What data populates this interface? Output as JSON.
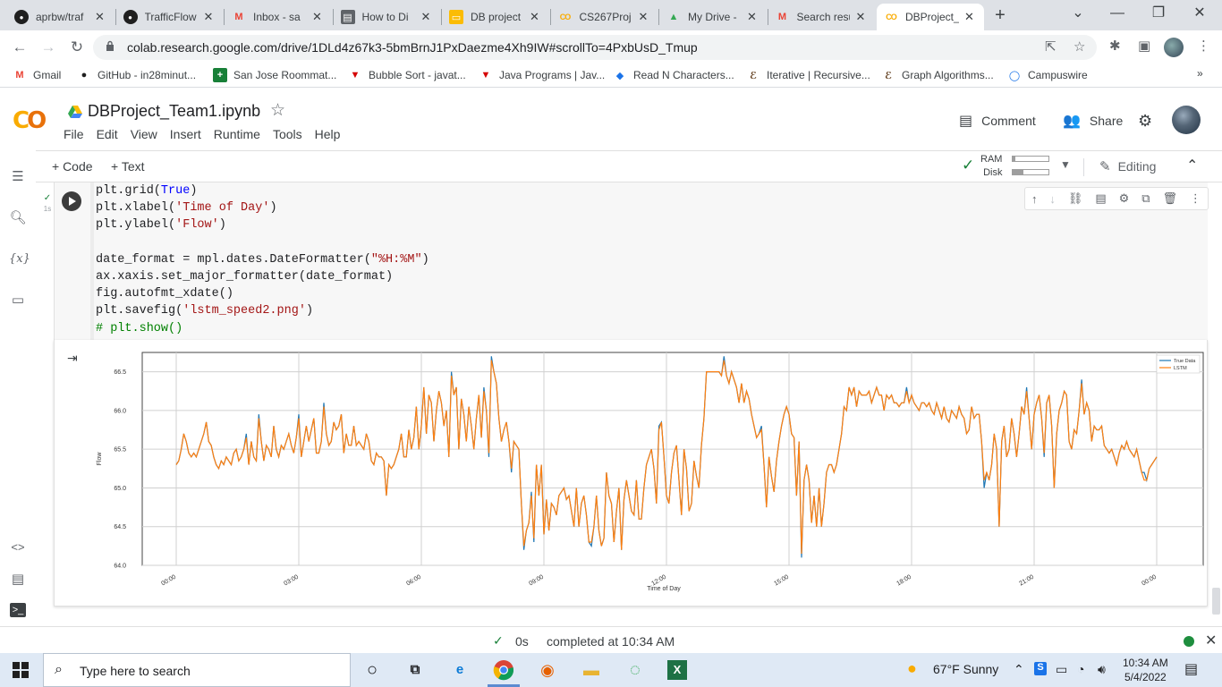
{
  "browser": {
    "tabs": [
      {
        "label": "aprbw/traf",
        "icon": "github-icon"
      },
      {
        "label": "TrafficFlow",
        "icon": "github-icon"
      },
      {
        "label": "Inbox - sa",
        "icon": "gmail-icon"
      },
      {
        "label": "How to Di",
        "icon": "page-icon"
      },
      {
        "label": "DB project",
        "icon": "slides-icon"
      },
      {
        "label": "CS267Proj",
        "icon": "colab-icon"
      },
      {
        "label": "My Drive -",
        "icon": "drive-icon"
      },
      {
        "label": "Search resu",
        "icon": "gmail-icon"
      },
      {
        "label": "DBProject_",
        "icon": "colab-icon"
      }
    ],
    "url": "colab.research.google.com/drive/1DLd4z67k3-5bmBrnJ1PxDaezme4Xh9IW#scrollTo=4PxbUsD_Tmup",
    "bookmarks": [
      {
        "label": "Gmail",
        "icon": "gmail-icon"
      },
      {
        "label": "GitHub - in28minut...",
        "icon": "github-icon"
      },
      {
        "label": "San Jose Roommat...",
        "icon": "plus-icon"
      },
      {
        "label": "Bubble Sort - javat...",
        "icon": "javatpoint-icon"
      },
      {
        "label": "Java Programs | Jav...",
        "icon": "javatpoint-icon"
      },
      {
        "label": "Read N Characters...",
        "icon": "stack-icon"
      },
      {
        "label": "Iterative | Recursive...",
        "icon": "code-icon"
      },
      {
        "label": "Graph Algorithms...",
        "icon": "code-icon"
      },
      {
        "label": "Campuswire",
        "icon": "campuswire-icon"
      }
    ]
  },
  "colab": {
    "logo": "CO",
    "notebook_title": "DBProject_Team1.ipynb",
    "menu": [
      "File",
      "Edit",
      "View",
      "Insert",
      "Runtime",
      "Tools",
      "Help"
    ],
    "comment_label": "Comment",
    "share_label": "Share",
    "add_code_label": "+ Code",
    "add_text_label": "+ Text",
    "ram_label": "RAM",
    "disk_label": "Disk",
    "ram_usage": 0.08,
    "disk_usage": 0.3,
    "editing_label": "Editing"
  },
  "cell": {
    "exec_time": "1s",
    "code_lines": [
      [
        {
          "t": "plt.grid("
        },
        {
          "t": "True",
          "c": "kw"
        },
        {
          "t": ")"
        }
      ],
      [
        {
          "t": "plt.xlabel("
        },
        {
          "t": "'Time of Day'",
          "c": "str"
        },
        {
          "t": ")"
        }
      ],
      [
        {
          "t": "plt.ylabel("
        },
        {
          "t": "'Flow'",
          "c": "str"
        },
        {
          "t": ")"
        }
      ],
      [
        {
          "t": ""
        }
      ],
      [
        {
          "t": "date_format = mpl.dates.DateFormatter("
        },
        {
          "t": "\"%H:%M\"",
          "c": "str"
        },
        {
          "t": ")"
        }
      ],
      [
        {
          "t": "ax.xaxis.set_major_formatter(date_format)"
        }
      ],
      [
        {
          "t": "fig.autofmt_xdate()"
        }
      ],
      [
        {
          "t": "plt.savefig("
        },
        {
          "t": "'lstm_speed2.png'",
          "c": "str"
        },
        {
          "t": ")"
        }
      ],
      [
        {
          "t": "# plt.show()",
          "c": "cm"
        }
      ]
    ]
  },
  "status": {
    "elapsed": "0s",
    "message": "completed at 10:34 AM"
  },
  "taskbar": {
    "search_placeholder": "Type here to search",
    "weather": "67°F  Sunny",
    "time": "10:34 AM",
    "date": "5/4/2022"
  },
  "chart_data": {
    "type": "line",
    "title": "",
    "xlabel": "Time of Day",
    "ylabel": "Flow",
    "ylim": [
      64.0,
      66.75
    ],
    "yticks": [
      "64.0",
      "64.5",
      "65.0",
      "65.5",
      "66.0",
      "66.5"
    ],
    "xticks": [
      "00:00",
      "03:00",
      "06:00",
      "09:00",
      "12:00",
      "15:00",
      "18:00",
      "21:00",
      "00:00"
    ],
    "x_range_hours": [
      0,
      24
    ],
    "grid": true,
    "legend_position": "top-right",
    "colors": {
      "true_data": "#1f77b4",
      "lstm": "#ff7f0e"
    },
    "series": [
      {
        "name": "True Data",
        "values": [
          65.3,
          65.35,
          65.5,
          65.7,
          65.6,
          65.45,
          65.4,
          65.45,
          65.4,
          65.5,
          65.6,
          65.7,
          65.85,
          65.6,
          65.55,
          65.4,
          65.3,
          65.25,
          65.35,
          65.3,
          65.4,
          65.35,
          65.3,
          65.45,
          65.5,
          65.35,
          65.4,
          65.5,
          65.7,
          65.3,
          65.6,
          65.4,
          65.35,
          65.95,
          65.6,
          65.35,
          65.55,
          65.5,
          65.4,
          65.8,
          65.5,
          65.4,
          65.55,
          65.5,
          65.6,
          65.7,
          65.55,
          65.45,
          65.65,
          65.95,
          65.4,
          65.6,
          65.8,
          65.6,
          65.75,
          65.9,
          65.45,
          65.45,
          65.6,
          66.1,
          65.7,
          65.55,
          65.6,
          65.85,
          65.75,
          65.8,
          65.95,
          65.45,
          65.7,
          65.55,
          65.55,
          65.8,
          65.55,
          65.6,
          65.55,
          65.5,
          65.7,
          65.6,
          65.35,
          65.3,
          65.45,
          65.4,
          65.4,
          65.35,
          64.9,
          65.3,
          65.25,
          65.3,
          65.4,
          65.5,
          65.7,
          65.4,
          65.4,
          65.75,
          65.5,
          65.65,
          66.05,
          65.5,
          65.8,
          66.3,
          65.7,
          66.2,
          66.1,
          65.6,
          66.0,
          66.25,
          66.1,
          65.8,
          66.0,
          65.4,
          66.5,
          66.2,
          66.3,
          65.5,
          66.15,
          65.95,
          65.6,
          66.05,
          65.8,
          65.5,
          65.9,
          66.2,
          65.65,
          66.3,
          66.0,
          65.4,
          66.7,
          66.5,
          66.35,
          65.9,
          65.6,
          65.75,
          65.85,
          65.6,
          65.2,
          65.6,
          65.55,
          65.5,
          64.8,
          64.2,
          64.45,
          64.55,
          64.95,
          64.3,
          65.3,
          64.9,
          65.3,
          64.4,
          64.85,
          64.45,
          64.8,
          64.75,
          64.65,
          64.9,
          64.95,
          65.0,
          64.85,
          64.9,
          64.7,
          64.5,
          65.0,
          64.5,
          64.8,
          64.9,
          64.65,
          64.3,
          64.25,
          64.5,
          64.9,
          64.45,
          64.25,
          64.35,
          65.2,
          64.9,
          64.8,
          64.3,
          64.7,
          65.0,
          64.2,
          64.85,
          65.1,
          64.9,
          64.7,
          64.65,
          65.1,
          64.6,
          64.6,
          65.0,
          65.3,
          65.4,
          65.5,
          65.25,
          64.8,
          65.8,
          65.85,
          65.4,
          64.9,
          64.8,
          65.2,
          65.45,
          65.55,
          65.1,
          64.65,
          65.5,
          65.25,
          64.7,
          64.8,
          65.35,
          65.15,
          65.0,
          65.55,
          65.9,
          66.5,
          66.5,
          66.5,
          66.5,
          66.5,
          66.5,
          66.45,
          66.7,
          66.45,
          66.35,
          66.5,
          66.4,
          66.3,
          66.1,
          66.35,
          66.1,
          66.25,
          66.15,
          65.95,
          65.8,
          65.65,
          65.7,
          65.8,
          65.3,
          64.75,
          65.4,
          65.15,
          64.95,
          65.35,
          65.6,
          65.8,
          65.95,
          66.05,
          65.95,
          65.7,
          65.65,
          64.9,
          65.6,
          64.1,
          65.1,
          65.3,
          65.1,
          64.55,
          64.9,
          64.5,
          65.0,
          64.5,
          64.8,
          65.2,
          65.3,
          65.3,
          65.2,
          65.3,
          65.5,
          65.7,
          66.05,
          66.0,
          66.3,
          66.2,
          66.3,
          66.05,
          66.25,
          66.2,
          66.2,
          66.2,
          66.25,
          66.1,
          66.2,
          66.3,
          66.2,
          66.2,
          66.0,
          66.2,
          66.15,
          66.2,
          66.1,
          66.1,
          66.05,
          66.1,
          66.1,
          66.3,
          66.1,
          66.2,
          66.1,
          66.05,
          66.0,
          66.1,
          66.1,
          66.05,
          66.1,
          66.0,
          65.95,
          66.1,
          66.0,
          65.9,
          66.05,
          65.9,
          65.85,
          66.0,
          65.95,
          65.9,
          66.05,
          65.95,
          65.9,
          65.7,
          65.75,
          66.05,
          65.9,
          65.95,
          65.95,
          65.6,
          65.0,
          65.2,
          65.1,
          65.3,
          65.7,
          65.5,
          64.5,
          65.6,
          65.8,
          65.4,
          65.5,
          65.9,
          65.7,
          65.4,
          65.7,
          66.05,
          65.95,
          66.3,
          65.9,
          65.5,
          65.95,
          66.1,
          66.2,
          65.9,
          65.4,
          66.1,
          66.2,
          65.8,
          65.0,
          65.7,
          66.0,
          66.1,
          66.25,
          66.2,
          65.6,
          65.5,
          65.75,
          65.7,
          66.0,
          66.4,
          65.95,
          66.1,
          66.0,
          65.6,
          65.8,
          65.75,
          65.75,
          65.8,
          65.55,
          65.5,
          65.45,
          65.5,
          65.4,
          65.3,
          65.45,
          65.55,
          65.5,
          65.6,
          65.5,
          65.45,
          65.4,
          65.5,
          65.35,
          65.2,
          65.2,
          65.1,
          65.25,
          65.3,
          65.35,
          65.4
        ]
      },
      {
        "name": "LSTM",
        "values": [
          65.3,
          65.35,
          65.5,
          65.7,
          65.6,
          65.45,
          65.4,
          65.45,
          65.4,
          65.5,
          65.6,
          65.7,
          65.85,
          65.6,
          65.55,
          65.4,
          65.3,
          65.25,
          65.35,
          65.3,
          65.4,
          65.35,
          65.3,
          65.45,
          65.5,
          65.35,
          65.4,
          65.5,
          65.65,
          65.3,
          65.6,
          65.4,
          65.35,
          65.9,
          65.6,
          65.35,
          65.55,
          65.5,
          65.4,
          65.8,
          65.5,
          65.4,
          65.55,
          65.5,
          65.6,
          65.7,
          65.55,
          65.45,
          65.65,
          65.9,
          65.4,
          65.6,
          65.8,
          65.6,
          65.75,
          65.9,
          65.45,
          65.45,
          65.6,
          66.05,
          65.7,
          65.55,
          65.6,
          65.85,
          65.75,
          65.8,
          65.95,
          65.45,
          65.7,
          65.55,
          65.55,
          65.8,
          65.55,
          65.6,
          65.55,
          65.5,
          65.7,
          65.6,
          65.35,
          65.3,
          65.45,
          65.4,
          65.4,
          65.35,
          64.9,
          65.3,
          65.25,
          65.3,
          65.4,
          65.5,
          65.7,
          65.4,
          65.4,
          65.75,
          65.5,
          65.65,
          66.05,
          65.5,
          65.8,
          66.3,
          65.7,
          66.2,
          66.1,
          65.6,
          66.0,
          66.25,
          66.1,
          65.8,
          66.0,
          65.4,
          66.45,
          66.2,
          66.3,
          65.5,
          66.15,
          65.95,
          65.6,
          66.05,
          65.8,
          65.5,
          65.9,
          66.2,
          65.65,
          66.25,
          66.0,
          65.45,
          66.65,
          66.5,
          66.35,
          65.9,
          65.6,
          65.75,
          65.85,
          65.6,
          65.25,
          65.6,
          65.55,
          65.5,
          64.8,
          64.25,
          64.45,
          64.55,
          64.9,
          64.35,
          65.3,
          64.9,
          65.3,
          64.4,
          64.85,
          64.45,
          64.8,
          64.75,
          64.65,
          64.9,
          64.95,
          65.0,
          64.85,
          64.9,
          64.7,
          64.5,
          65.0,
          64.5,
          64.8,
          64.9,
          64.65,
          64.3,
          64.3,
          64.5,
          64.9,
          64.45,
          64.25,
          64.35,
          65.2,
          64.9,
          64.8,
          64.3,
          64.7,
          65.0,
          64.2,
          64.85,
          65.1,
          64.9,
          64.7,
          64.65,
          65.1,
          64.6,
          64.6,
          65.0,
          65.3,
          65.4,
          65.5,
          65.25,
          64.8,
          65.75,
          65.85,
          65.4,
          64.9,
          64.8,
          65.2,
          65.45,
          65.55,
          65.1,
          64.65,
          65.5,
          65.25,
          64.7,
          64.8,
          65.35,
          65.15,
          65.0,
          65.55,
          65.9,
          66.5,
          66.5,
          66.5,
          66.5,
          66.5,
          66.5,
          66.45,
          66.65,
          66.45,
          66.35,
          66.5,
          66.4,
          66.3,
          66.1,
          66.35,
          66.1,
          66.25,
          66.15,
          65.95,
          65.8,
          65.65,
          65.7,
          65.75,
          65.3,
          64.75,
          65.4,
          65.15,
          64.95,
          65.35,
          65.6,
          65.8,
          65.95,
          66.05,
          65.95,
          65.7,
          65.65,
          64.9,
          65.6,
          64.15,
          65.1,
          65.3,
          65.1,
          64.55,
          64.9,
          64.5,
          65.0,
          64.5,
          64.8,
          65.2,
          65.3,
          65.3,
          65.2,
          65.3,
          65.5,
          65.7,
          66.05,
          66.0,
          66.3,
          66.2,
          66.3,
          66.05,
          66.25,
          66.2,
          66.2,
          66.2,
          66.25,
          66.1,
          66.2,
          66.3,
          66.2,
          66.2,
          66.0,
          66.2,
          66.15,
          66.2,
          66.1,
          66.1,
          66.05,
          66.1,
          66.1,
          66.25,
          66.1,
          66.2,
          66.1,
          66.05,
          66.0,
          66.1,
          66.1,
          66.05,
          66.1,
          66.0,
          65.95,
          66.1,
          66.0,
          65.9,
          66.05,
          65.9,
          65.85,
          66.0,
          65.95,
          65.9,
          66.05,
          65.95,
          65.9,
          65.7,
          65.75,
          66.05,
          65.9,
          65.95,
          65.95,
          65.6,
          65.1,
          65.2,
          65.1,
          65.3,
          65.7,
          65.5,
          64.5,
          65.6,
          65.8,
          65.4,
          65.5,
          65.9,
          65.7,
          65.4,
          65.7,
          66.05,
          65.95,
          66.25,
          65.9,
          65.5,
          65.95,
          66.1,
          66.2,
          65.9,
          65.45,
          66.1,
          66.2,
          65.8,
          65.0,
          65.7,
          66.0,
          66.1,
          66.25,
          66.2,
          65.6,
          65.5,
          65.75,
          65.7,
          66.0,
          66.35,
          65.95,
          66.1,
          66.0,
          65.6,
          65.8,
          65.75,
          65.75,
          65.8,
          65.55,
          65.5,
          65.45,
          65.5,
          65.4,
          65.3,
          65.45,
          65.55,
          65.5,
          65.6,
          65.5,
          65.45,
          65.4,
          65.5,
          65.35,
          65.2,
          65.1,
          65.1,
          65.25,
          65.3,
          65.35,
          65.4
        ]
      }
    ]
  }
}
